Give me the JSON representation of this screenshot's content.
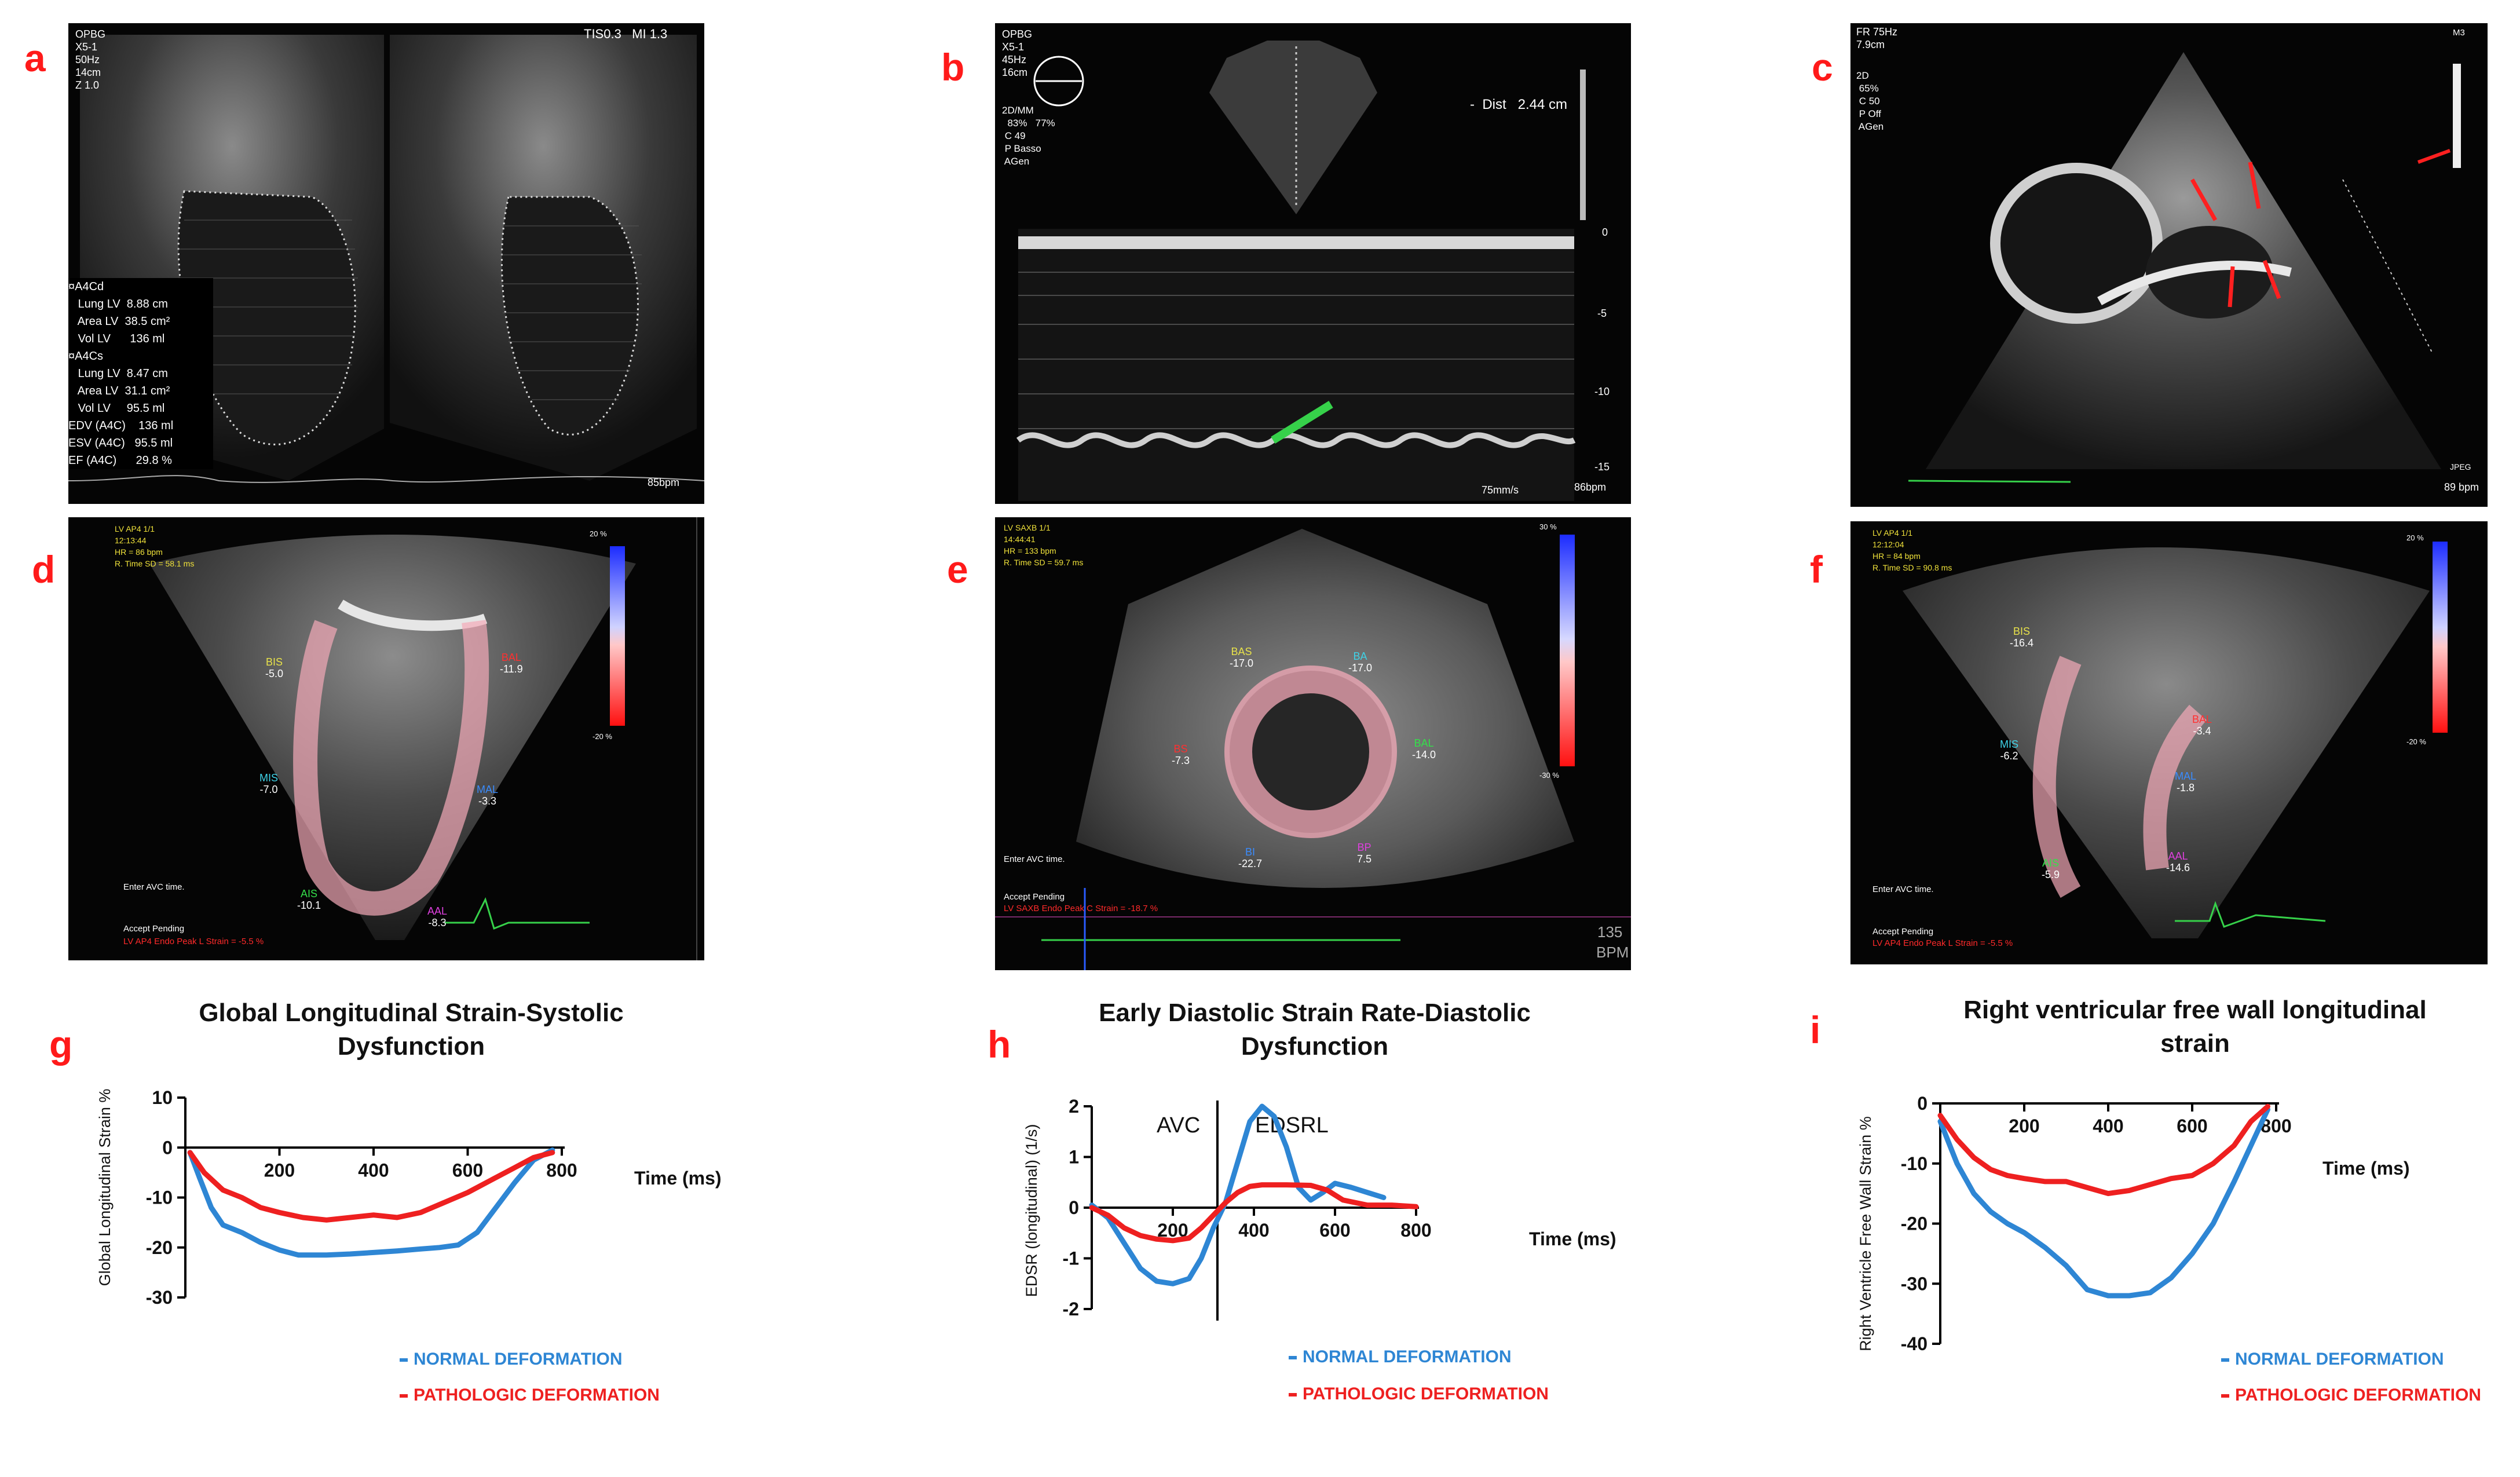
{
  "panels": {
    "a": {
      "letter": "a",
      "header": "OPBG\nX5-1\n50Hz\n14cm\nZ 1.0",
      "topright": "TIS0.3   MI 1.3",
      "measure": "¤A4Cd\n   Lung LV  8.88 cm\n   Area LV  38.5 cm²\n   Vol LV      136 ml\n¤A4Cs\n   Lung LV  8.47 cm\n   Area LV  31.1 cm²\n   Vol LV     95.5 ml",
      "results": "EDV (A4C)    136 ml\nESV (A4C)   95.5 ml\nEF (A4C)      29.8 %",
      "bpm": "85bpm"
    },
    "b": {
      "letter": "b",
      "header": "OPBG\nX5-1\n45Hz\n16cm",
      "settings": "2D/MM\n  83%   77%\n C 49\n P Basso\n AGen",
      "dist_label": "-  Dist   2.44 cm",
      "depth_ticks": [
        "0",
        "-5",
        "-10",
        "-15"
      ],
      "speed": "75mm/s",
      "bpm": "86bpm"
    },
    "c": {
      "letter": "c",
      "header": "FR 75Hz\n7.9cm",
      "settings": "2D\n 65%\n C 50\n P Off\n AGen",
      "m3": "M3",
      "bpm": "89 bpm",
      "jpeg": "JPEG"
    },
    "d": {
      "letter": "d",
      "header": "LV AP4 1/1\n12:13:44\nHR = 86 bpm\nR. Time SD = 58.1 ms",
      "scale_top": "20 %",
      "scale_bottom": "-20 %",
      "segments": [
        {
          "name": "BIS",
          "value": "-5.0",
          "color": "#e8e24a"
        },
        {
          "name": "BAL",
          "value": "-11.9",
          "color": "#ff3030"
        },
        {
          "name": "MIS",
          "value": "-7.0",
          "color": "#3fd3e8"
        },
        {
          "name": "MAL",
          "value": "-3.3",
          "color": "#3a8cff"
        },
        {
          "name": "AIS",
          "value": "-10.1",
          "color": "#34e04a"
        },
        {
          "name": "AAL",
          "value": "-8.3",
          "color": "#e040e0"
        }
      ],
      "enter_avc": "Enter AVC time.",
      "accept": "Accept Pending",
      "footer": "LV AP4 Endo Peak L Strain = -5.5 %"
    },
    "e": {
      "letter": "e",
      "header": "LV SAXB 1/1\n14:44:41\nHR = 133 bpm\nR. Time SD = 59.7 ms",
      "scale_top": "30 %",
      "scale_bottom": "-30 %",
      "segments": [
        {
          "name": "BAS",
          "value": "-17.0",
          "color": "#e8e24a"
        },
        {
          "name": "BA",
          "value": "-17.0",
          "color": "#3fd3e8"
        },
        {
          "name": "BAL",
          "value": "-14.0",
          "color": "#34e04a"
        },
        {
          "name": "BS",
          "value": "-7.3",
          "color": "#ff3030"
        },
        {
          "name": "BI",
          "value": "-22.7",
          "color": "#3a8cff"
        },
        {
          "name": "BP",
          "value": "7.5",
          "color": "#e040e0"
        }
      ],
      "enter_avc": "Enter AVC time.",
      "accept": "Accept Pending",
      "footer": "LV SAXB Endo Peak C Strain = -18.7 %",
      "bpm_num": "135",
      "bpm_unit": "BPM"
    },
    "f": {
      "letter": "f",
      "header": "LV AP4 1/1\n12:12:04\nHR = 84 bpm\nR. Time SD = 90.8 ms",
      "scale_top": "20 %",
      "scale_bottom": "-20 %",
      "segments": [
        {
          "name": "BIS",
          "value": "-16.4",
          "color": "#e8e24a"
        },
        {
          "name": "BAL",
          "value": "-3.4",
          "color": "#ff3030"
        },
        {
          "name": "MIS",
          "value": "-6.2",
          "color": "#3fd3e8"
        },
        {
          "name": "MAL",
          "value": "-1.8",
          "color": "#3a8cff"
        },
        {
          "name": "AIS",
          "value": "-5.9",
          "color": "#34e04a"
        },
        {
          "name": "AAL",
          "value": "-14.6",
          "color": "#e040e0"
        }
      ],
      "enter_avc": "Enter AVC time.",
      "accept": "Accept Pending",
      "footer": "LV AP4 Endo Peak L Strain = -5.5 %"
    },
    "g": {
      "letter": "g"
    },
    "h": {
      "letter": "h"
    },
    "i": {
      "letter": "i"
    }
  },
  "colors": {
    "normal": "#2e86d4",
    "pathologic": "#ee2020",
    "letter": "#ff1a1a"
  },
  "chart_data": [
    {
      "id": "g",
      "type": "line",
      "title": "Global Longitudinal Strain-Systolic Dysfunction",
      "xlabel": "Time (ms)",
      "ylabel": "Global Longitudinal Strain %",
      "xticks": [
        200,
        400,
        600,
        800
      ],
      "yticks": [
        10,
        0,
        -10,
        -20,
        -30
      ],
      "xlim": [
        0,
        800
      ],
      "ylim": [
        -30,
        10
      ],
      "legend": [
        "NORMAL DEFORMATION",
        "PATHOLOGIC DEFORMATION"
      ],
      "series": [
        {
          "name": "NORMAL DEFORMATION",
          "color": "#2e86d4",
          "x": [
            10,
            30,
            55,
            80,
            120,
            160,
            200,
            240,
            300,
            350,
            400,
            450,
            500,
            540,
            580,
            620,
            660,
            700,
            740,
            780
          ],
          "y": [
            -1,
            -6,
            -12,
            -15.5,
            -17,
            -19,
            -20.5,
            -21.5,
            -21.5,
            -21.3,
            -21,
            -20.7,
            -20.3,
            -20,
            -19.5,
            -17,
            -12,
            -7,
            -2.5,
            -0.5
          ]
        },
        {
          "name": "PATHOLOGIC DEFORMATION",
          "color": "#ee2020",
          "x": [
            10,
            40,
            80,
            120,
            160,
            200,
            250,
            300,
            350,
            400,
            450,
            500,
            550,
            600,
            650,
            700,
            740,
            780
          ],
          "y": [
            -1,
            -5,
            -8.5,
            -10,
            -12,
            -13,
            -14,
            -14.5,
            -14,
            -13.5,
            -14,
            -13,
            -11,
            -9,
            -6.5,
            -4,
            -2,
            -1
          ]
        }
      ]
    },
    {
      "id": "h",
      "type": "line",
      "title": "Early Diastolic Strain Rate-Diastolic Dysfunction",
      "xlabel": "Time (ms)",
      "ylabel": "EDSR (longitudinal) (1/s)",
      "xticks": [
        200,
        400,
        600,
        800
      ],
      "yticks": [
        2,
        1,
        0,
        -1,
        -2
      ],
      "xlim": [
        0,
        800
      ],
      "ylim": [
        -2,
        2
      ],
      "annotations": [
        "AVC",
        "EDSRL"
      ],
      "avc_x": 310,
      "legend": [
        "NORMAL DEFORMATION",
        "PATHOLOGIC DEFORMATION"
      ],
      "series": [
        {
          "name": "NORMAL DEFORMATION",
          "color": "#2e86d4",
          "x": [
            0,
            40,
            80,
            120,
            160,
            200,
            240,
            270,
            300,
            330,
            360,
            390,
            420,
            450,
            480,
            510,
            540,
            570,
            600,
            640,
            680,
            720
          ],
          "y": [
            0.05,
            -0.2,
            -0.7,
            -1.2,
            -1.45,
            -1.5,
            -1.4,
            -1.0,
            -0.4,
            0.1,
            0.9,
            1.7,
            2.0,
            1.8,
            1.2,
            0.4,
            0.15,
            0.3,
            0.48,
            0.4,
            0.3,
            0.2
          ]
        },
        {
          "name": "PATHOLOGIC DEFORMATION",
          "color": "#ee2020",
          "x": [
            0,
            40,
            80,
            120,
            160,
            200,
            240,
            270,
            300,
            330,
            360,
            390,
            420,
            480,
            540,
            580,
            620,
            680,
            740,
            800
          ],
          "y": [
            0,
            -0.15,
            -0.4,
            -0.55,
            -0.62,
            -0.65,
            -0.6,
            -0.4,
            -0.15,
            0.1,
            0.3,
            0.42,
            0.45,
            0.45,
            0.44,
            0.35,
            0.15,
            0.05,
            0.05,
            0.02
          ]
        }
      ]
    },
    {
      "id": "i",
      "type": "line",
      "title": "Right ventricular free wall longitudinal strain",
      "xlabel": "Time (ms)",
      "ylabel": "Right Ventricle Free Wall Strain %",
      "xticks": [
        200,
        400,
        600,
        800
      ],
      "yticks": [
        0,
        -10,
        -20,
        -30,
        -40
      ],
      "xlim": [
        0,
        800
      ],
      "ylim": [
        -40,
        0
      ],
      "legend": [
        "NORMAL DEFORMATION",
        "PATHOLOGIC DEFORMATION"
      ],
      "series": [
        {
          "name": "NORMAL DEFORMATION",
          "color": "#2e86d4",
          "x": [
            0,
            40,
            80,
            120,
            160,
            200,
            250,
            300,
            350,
            400,
            450,
            500,
            550,
            600,
            650,
            700,
            740,
            780
          ],
          "y": [
            -3,
            -10,
            -15,
            -18,
            -20,
            -21.5,
            -24,
            -27,
            -31,
            -32,
            -32,
            -31.5,
            -29,
            -25,
            -20,
            -13,
            -7,
            -1
          ]
        },
        {
          "name": "PATHOLOGIC DEFORMATION",
          "color": "#ee2020",
          "x": [
            0,
            40,
            80,
            120,
            160,
            200,
            250,
            300,
            350,
            400,
            450,
            500,
            550,
            600,
            650,
            700,
            740,
            780
          ],
          "y": [
            -2,
            -6,
            -9,
            -11,
            -12,
            -12.5,
            -13,
            -13,
            -14,
            -15,
            -14.5,
            -13.5,
            -12.5,
            -12,
            -10,
            -7,
            -3,
            -0.5
          ]
        }
      ]
    }
  ]
}
